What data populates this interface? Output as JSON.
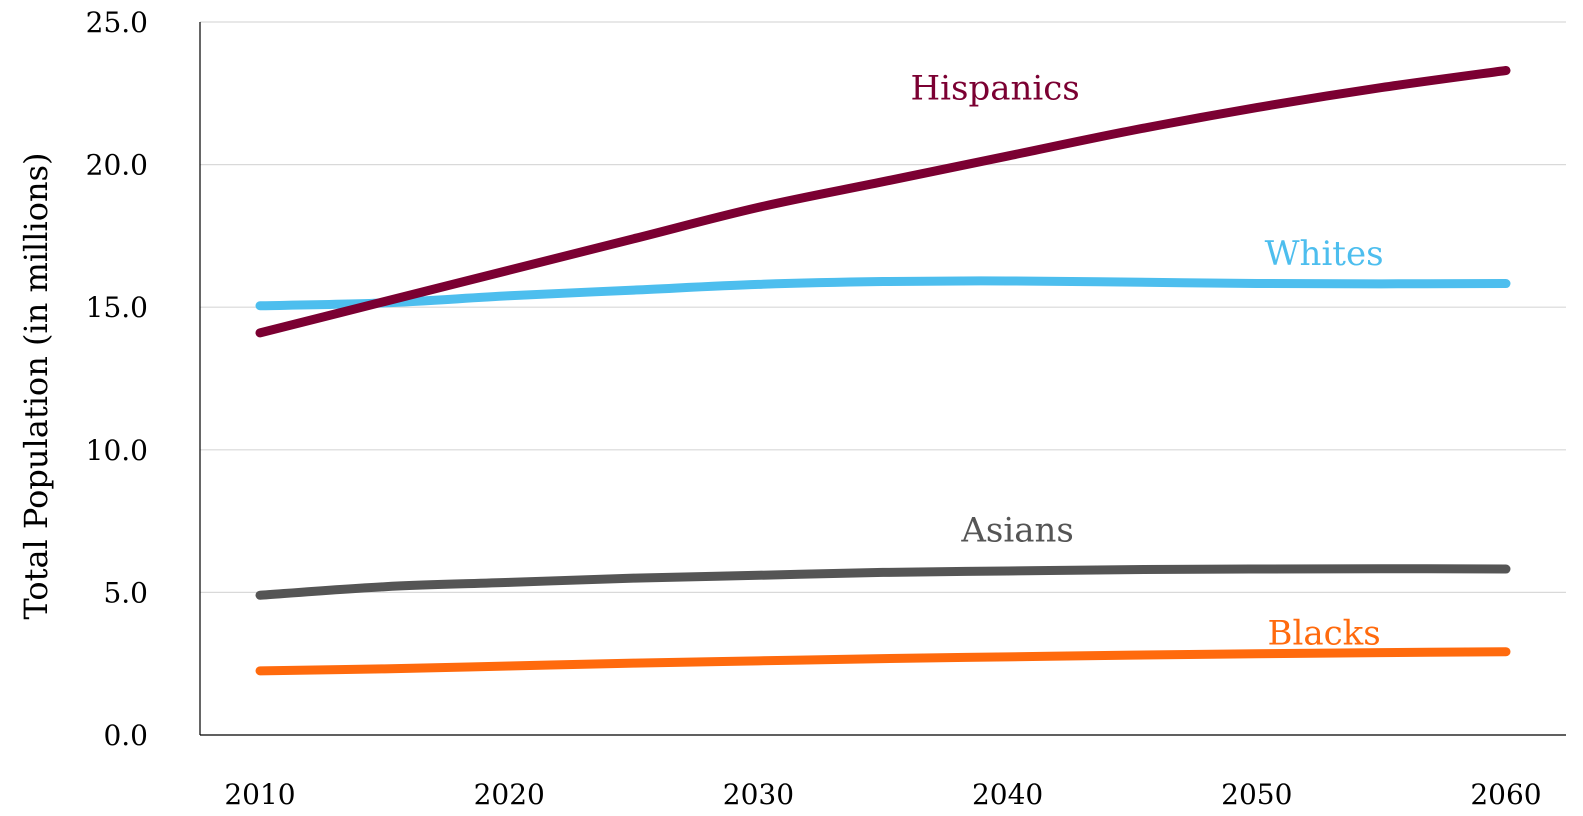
{
  "chart_data": {
    "type": "line",
    "title": "",
    "xlabel": "",
    "ylabel": "Total Population (in millions)",
    "x": [
      2010,
      2015,
      2020,
      2025,
      2030,
      2035,
      2040,
      2045,
      2050,
      2055,
      2060
    ],
    "xticks": [
      {
        "value": 2010,
        "label": "2010"
      },
      {
        "value": 2020,
        "label": "2020"
      },
      {
        "value": 2030,
        "label": "2030"
      },
      {
        "value": 2040,
        "label": "2040"
      },
      {
        "value": 2050,
        "label": "2050"
      },
      {
        "value": 2060,
        "label": "2060"
      }
    ],
    "yticks": [
      {
        "value": 0,
        "label": "0.0"
      },
      {
        "value": 5,
        "label": "5.0"
      },
      {
        "value": 10,
        "label": "10.0"
      },
      {
        "value": 15,
        "label": "15.0"
      },
      {
        "value": 20,
        "label": "20.0"
      },
      {
        "value": 25,
        "label": "25.0"
      }
    ],
    "xlim": [
      2010,
      2060
    ],
    "ylim": [
      0,
      25
    ],
    "grid": "horizontal",
    "series": [
      {
        "name": "Hispanics",
        "color": "#7b0032",
        "values": [
          14.1,
          15.2,
          16.3,
          17.4,
          18.5,
          19.4,
          20.3,
          21.2,
          22.0,
          22.7,
          23.3
        ],
        "label_anchor": {
          "x": 2039.5,
          "y": 22.7
        }
      },
      {
        "name": "Whites",
        "color": "#4dbeee",
        "values": [
          15.05,
          15.15,
          15.4,
          15.6,
          15.8,
          15.9,
          15.92,
          15.88,
          15.83,
          15.82,
          15.83
        ],
        "label_anchor": {
          "x": 2052.7,
          "y": 16.9
        }
      },
      {
        "name": "Asians",
        "color": "#555555",
        "values": [
          4.9,
          5.2,
          5.35,
          5.5,
          5.6,
          5.7,
          5.75,
          5.8,
          5.82,
          5.83,
          5.82
        ],
        "label_anchor": {
          "x": 2040.4,
          "y": 7.2
        }
      },
      {
        "name": "Blacks",
        "color": "#ff6a0d",
        "values": [
          2.25,
          2.32,
          2.42,
          2.52,
          2.6,
          2.68,
          2.74,
          2.8,
          2.85,
          2.89,
          2.92
        ],
        "label_anchor": {
          "x": 2052.7,
          "y": 3.6
        }
      }
    ]
  }
}
